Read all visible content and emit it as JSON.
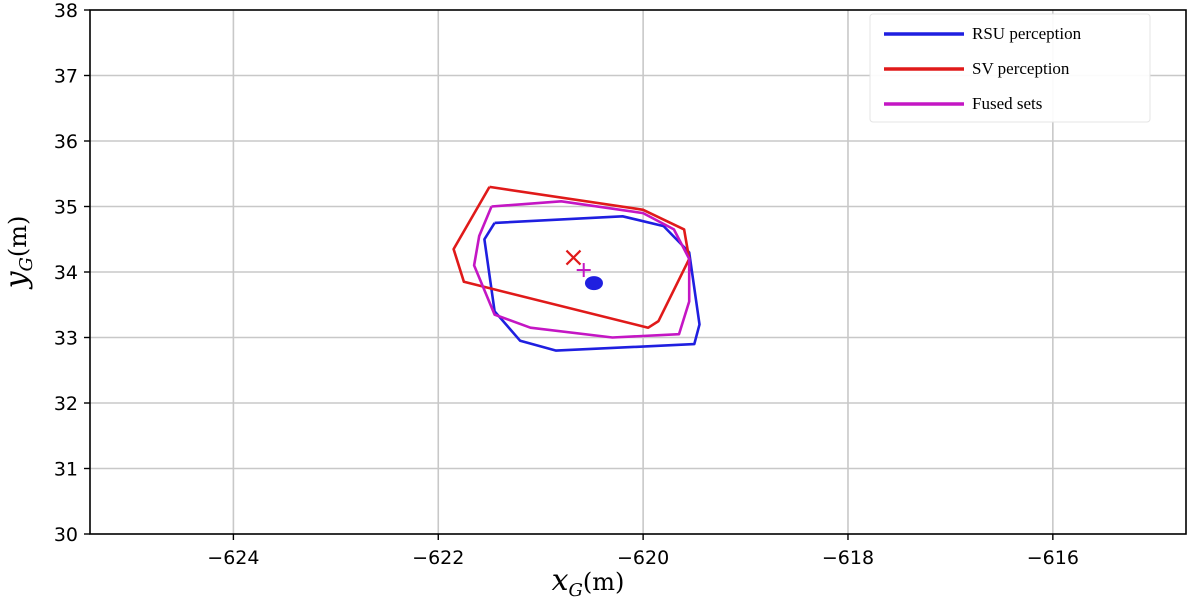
{
  "chart_data": {
    "type": "line",
    "xlabel": {
      "var": "x",
      "sub": "G",
      "unit": "(m)"
    },
    "ylabel": {
      "var": "y",
      "sub": "G",
      "unit": "(m)"
    },
    "xlim": [
      -625.4,
      -614.7
    ],
    "ylim": [
      30,
      38
    ],
    "xticks": [
      -624,
      -622,
      -620,
      -618,
      -616
    ],
    "xtick_labels": [
      "−624",
      "−622",
      "−620",
      "−618",
      "−616"
    ],
    "yticks": [
      30,
      31,
      32,
      33,
      34,
      35,
      36,
      37,
      38
    ],
    "ytick_labels": [
      "30",
      "31",
      "32",
      "33",
      "34",
      "35",
      "36",
      "37",
      "38"
    ],
    "grid": true,
    "legend_position": "top-right",
    "series": [
      {
        "name": "RSU perception",
        "color": "#1f1fe0",
        "points": [
          [
            -621.45,
            34.75
          ],
          [
            -620.2,
            34.85
          ],
          [
            -619.8,
            34.7
          ],
          [
            -619.55,
            34.3
          ],
          [
            -619.45,
            33.2
          ],
          [
            -619.5,
            32.9
          ],
          [
            -620.85,
            32.8
          ],
          [
            -621.2,
            32.95
          ],
          [
            -621.45,
            33.4
          ],
          [
            -621.55,
            34.5
          ],
          [
            -621.45,
            34.75
          ]
        ]
      },
      {
        "name": "SV perception",
        "color": "#e01a1a",
        "points": [
          [
            -621.5,
            35.3
          ],
          [
            -620.0,
            34.95
          ],
          [
            -619.6,
            34.65
          ],
          [
            -619.55,
            34.2
          ],
          [
            -619.85,
            33.25
          ],
          [
            -619.95,
            33.15
          ],
          [
            -621.75,
            33.85
          ],
          [
            -621.85,
            34.35
          ],
          [
            -621.5,
            35.3
          ]
        ]
      },
      {
        "name": "Fused sets",
        "color": "#c416c4",
        "points": [
          [
            -621.48,
            35.0
          ],
          [
            -620.8,
            35.08
          ],
          [
            -620.0,
            34.9
          ],
          [
            -619.7,
            34.65
          ],
          [
            -619.55,
            34.2
          ],
          [
            -619.55,
            33.55
          ],
          [
            -619.65,
            33.05
          ],
          [
            -620.3,
            33.0
          ],
          [
            -621.1,
            33.15
          ],
          [
            -621.45,
            33.35
          ],
          [
            -621.65,
            34.1
          ],
          [
            -621.6,
            34.55
          ],
          [
            -621.48,
            35.0
          ]
        ]
      }
    ],
    "markers": [
      {
        "shape": "x",
        "color": "#e01a1a",
        "x": -620.68,
        "y": 34.22
      },
      {
        "shape": "plus",
        "color": "#c416c4",
        "x": -620.58,
        "y": 34.03
      },
      {
        "shape": "dot",
        "color": "#1f1fe0",
        "x": -620.48,
        "y": 33.83
      }
    ]
  }
}
